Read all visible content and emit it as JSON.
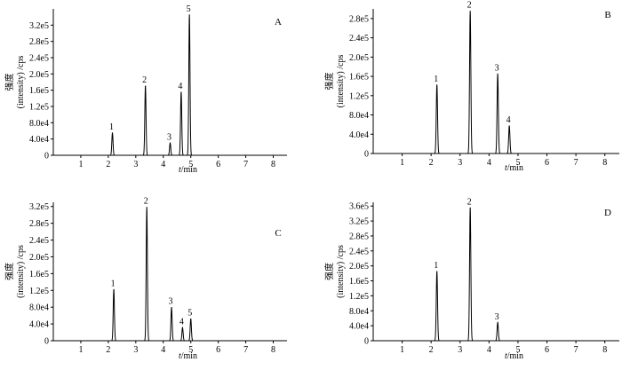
{
  "figure": {
    "line_color": "#000000"
  },
  "chart_data": [
    {
      "type": "line",
      "panel_label": "A",
      "xlabel_var": "t",
      "xlabel_unit": "/min",
      "ylabel_cn": "强度",
      "ylabel_en": "(intensity) /cps",
      "xlim": [
        0,
        8.5
      ],
      "ylim": [
        0,
        360000
      ],
      "x_ticks": [
        1,
        2,
        3,
        4,
        5,
        6,
        7,
        8
      ],
      "x_tick_labels": [
        "1",
        "2",
        "3",
        "4",
        "5",
        "6",
        "7",
        "8"
      ],
      "y_ticks": [
        0,
        40000,
        80000,
        120000,
        160000,
        200000,
        240000,
        280000,
        320000
      ],
      "y_tick_labels": [
        "0",
        "4.0e4",
        "8.0e4",
        "1.2e5",
        "1.6e5",
        "2.0e5",
        "2.4e5",
        "2.8e5",
        "3.2e5"
      ],
      "peaks": [
        {
          "label": "1",
          "x": 2.15,
          "y": 55000
        },
        {
          "label": "2",
          "x": 3.35,
          "y": 170000
        },
        {
          "label": "3",
          "x": 4.25,
          "y": 30000
        },
        {
          "label": "4",
          "x": 4.65,
          "y": 155000
        },
        {
          "label": "5",
          "x": 4.95,
          "y": 345000
        }
      ]
    },
    {
      "type": "line",
      "panel_label": "B",
      "xlabel_var": "t",
      "xlabel_unit": "/min",
      "ylabel_cn": "强度",
      "ylabel_en": "(intensity) /cps",
      "xlim": [
        0,
        8.5
      ],
      "ylim": [
        0,
        300000
      ],
      "x_ticks": [
        1,
        2,
        3,
        4,
        5,
        6,
        7,
        8
      ],
      "x_tick_labels": [
        "1",
        "2",
        "3",
        "4",
        "5",
        "6",
        "7",
        "8"
      ],
      "y_ticks": [
        0,
        40000,
        80000,
        120000,
        160000,
        200000,
        240000,
        280000
      ],
      "y_tick_labels": [
        "0",
        "4.0e4",
        "8.0e4",
        "1.2e5",
        "1.6e5",
        "2.0e5",
        "2.4e5",
        "2.8e5"
      ],
      "peaks": [
        {
          "label": "1",
          "x": 2.2,
          "y": 142000
        },
        {
          "label": "2",
          "x": 3.35,
          "y": 295000
        },
        {
          "label": "3",
          "x": 4.3,
          "y": 165000
        },
        {
          "label": "4",
          "x": 4.7,
          "y": 57000
        }
      ]
    },
    {
      "type": "line",
      "panel_label": "C",
      "xlabel_var": "t",
      "xlabel_unit": "/min",
      "ylabel_cn": "强度",
      "ylabel_en": "(intensity) /cps",
      "xlim": [
        0,
        8.5
      ],
      "ylim": [
        0,
        330000
      ],
      "x_ticks": [
        1,
        2,
        3,
        4,
        5,
        6,
        7,
        8
      ],
      "x_tick_labels": [
        "1",
        "2",
        "3",
        "4",
        "5",
        "6",
        "7",
        "8"
      ],
      "y_ticks": [
        0,
        40000,
        80000,
        120000,
        160000,
        200000,
        240000,
        280000,
        320000
      ],
      "y_tick_labels": [
        "0",
        "4.0e4",
        "8.0e4",
        "1.2e5",
        "1.6e5",
        "2.0e5",
        "2.4e5",
        "2.8e5",
        "3.2e5"
      ],
      "peaks": [
        {
          "label": "1",
          "x": 2.2,
          "y": 122000
        },
        {
          "label": "2",
          "x": 3.4,
          "y": 318000
        },
        {
          "label": "3",
          "x": 4.3,
          "y": 79000
        },
        {
          "label": "4",
          "x": 4.7,
          "y": 31000
        },
        {
          "label": "5",
          "x": 5.0,
          "y": 52000
        }
      ]
    },
    {
      "type": "line",
      "panel_label": "D",
      "xlabel_var": "t",
      "xlabel_unit": "/min",
      "ylabel_cn": "强度",
      "ylabel_en": "(intensity) /cps",
      "xlim": [
        0,
        8.5
      ],
      "ylim": [
        0,
        370000
      ],
      "x_ticks": [
        1,
        2,
        3,
        4,
        5,
        6,
        7,
        8
      ],
      "x_tick_labels": [
        "1",
        "2",
        "3",
        "4",
        "5",
        "6",
        "7",
        "8"
      ],
      "y_ticks": [
        0,
        40000,
        80000,
        120000,
        160000,
        200000,
        240000,
        280000,
        320000,
        360000
      ],
      "y_tick_labels": [
        "0",
        "4.0e4",
        "8.0e4",
        "1.2e5",
        "1.6e5",
        "2.0e5",
        "2.4e5",
        "2.8e5",
        "3.2e5",
        "3.6e5"
      ],
      "peaks": [
        {
          "label": "1",
          "x": 2.2,
          "y": 185000
        },
        {
          "label": "2",
          "x": 3.35,
          "y": 355000
        },
        {
          "label": "3",
          "x": 4.3,
          "y": 48000
        }
      ]
    }
  ]
}
